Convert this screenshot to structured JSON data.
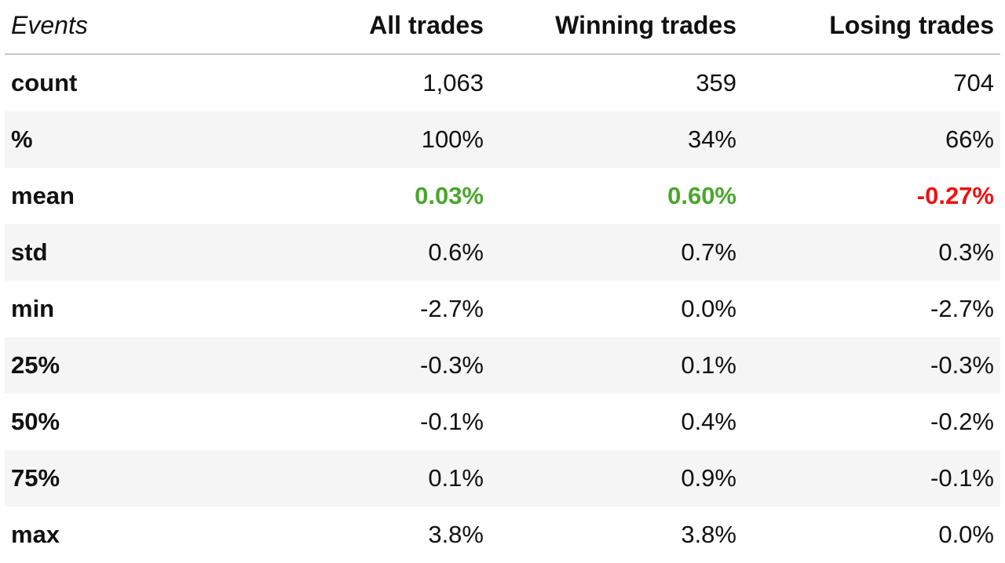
{
  "chart_data": {
    "type": "table",
    "columns": [
      "Events",
      "All trades",
      "Winning trades",
      "Losing trades"
    ],
    "rows": [
      {
        "label": "count",
        "values": [
          "1,063",
          "359",
          "704"
        ]
      },
      {
        "label": "%",
        "values": [
          "100%",
          "34%",
          "66%"
        ]
      },
      {
        "label": "mean",
        "values": [
          "0.03%",
          "0.60%",
          "-0.27%"
        ],
        "highlight": [
          "pos",
          "pos",
          "neg"
        ]
      },
      {
        "label": "std",
        "values": [
          "0.6%",
          "0.7%",
          "0.3%"
        ]
      },
      {
        "label": "min",
        "values": [
          "-2.7%",
          "0.0%",
          "-2.7%"
        ]
      },
      {
        "label": "25%",
        "values": [
          "-0.3%",
          "0.1%",
          "-0.3%"
        ]
      },
      {
        "label": "50%",
        "values": [
          "-0.1%",
          "0.4%",
          "-0.2%"
        ]
      },
      {
        "label": "75%",
        "values": [
          "0.1%",
          "0.9%",
          "-0.1%"
        ]
      },
      {
        "label": "max",
        "values": [
          "3.8%",
          "3.8%",
          "0.0%"
        ]
      }
    ],
    "colors": {
      "positive": "#4aa62c",
      "negative": "#ee1111",
      "stripe": "#f5f5f5",
      "header_rule": "#c8c8c8"
    }
  }
}
